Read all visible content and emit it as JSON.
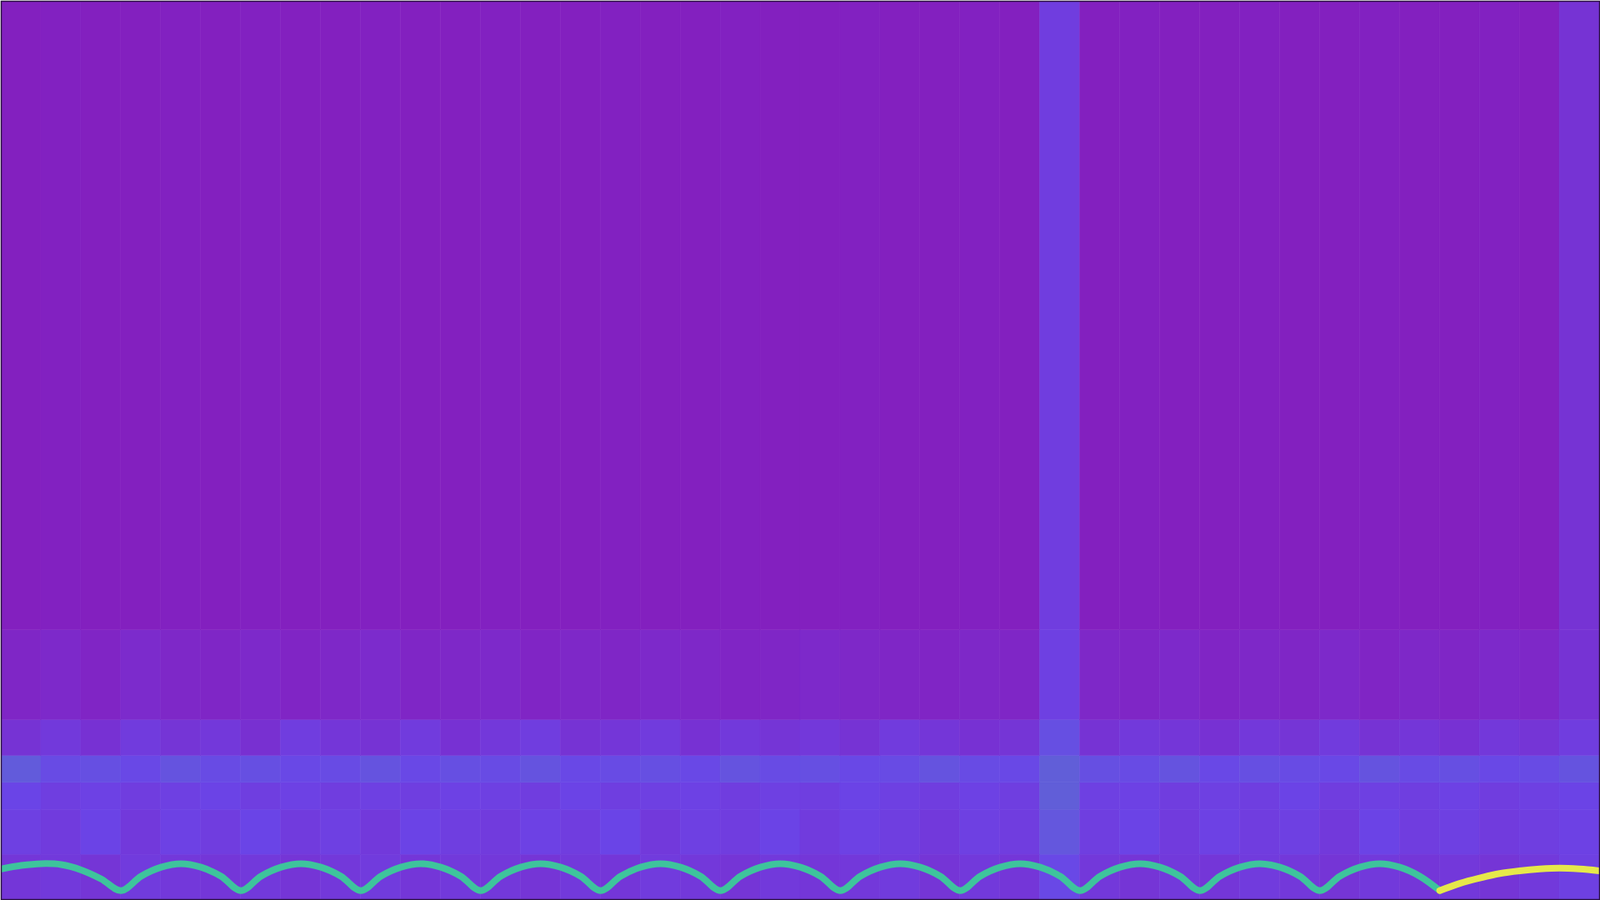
{
  "chart_data": {
    "type": "heatmap",
    "tick_labels": false,
    "xlim": [
      0,
      40
    ],
    "ylim": [
      0,
      100
    ],
    "zlim": [
      0,
      1
    ],
    "x_bins": [
      0,
      1,
      2,
      3,
      4,
      5,
      6,
      7,
      8,
      9,
      10,
      11,
      12,
      13,
      14,
      15,
      16,
      17,
      18,
      19,
      20,
      21,
      22,
      23,
      24,
      25,
      26,
      27,
      28,
      29,
      30,
      31,
      32,
      33,
      34,
      35,
      36,
      37,
      38,
      39,
      40
    ],
    "y_bins": [
      0,
      5,
      10,
      13,
      16,
      20,
      30,
      100
    ],
    "cells": [
      [
        0.24,
        0.26,
        0.23,
        0.27,
        0.25,
        0.24,
        0.26,
        0.23,
        0.25,
        0.27,
        0.24,
        0.26,
        0.25,
        0.23,
        0.26,
        0.24,
        0.27,
        0.25,
        0.23,
        0.26,
        0.24,
        0.25,
        0.27,
        0.23,
        0.26,
        0.24,
        0.34,
        0.25,
        0.23,
        0.26,
        0.24,
        0.27,
        0.25,
        0.23,
        0.26,
        0.24,
        0.25,
        0.23,
        0.26,
        0.3
      ],
      [
        0.3,
        0.27,
        0.32,
        0.26,
        0.31,
        0.28,
        0.33,
        0.27,
        0.3,
        0.26,
        0.32,
        0.29,
        0.27,
        0.31,
        0.28,
        0.33,
        0.26,
        0.3,
        0.28,
        0.32,
        0.27,
        0.31,
        0.29,
        0.26,
        0.3,
        0.28,
        0.38,
        0.29,
        0.32,
        0.27,
        0.31,
        0.28,
        0.3,
        0.26,
        0.32,
        0.28,
        0.3,
        0.27,
        0.29,
        0.31
      ],
      [
        0.33,
        0.29,
        0.31,
        0.28,
        0.3,
        0.32,
        0.29,
        0.31,
        0.28,
        0.3,
        0.29,
        0.31,
        0.3,
        0.28,
        0.32,
        0.29,
        0.3,
        0.31,
        0.28,
        0.3,
        0.29,
        0.32,
        0.3,
        0.28,
        0.31,
        0.29,
        0.4,
        0.3,
        0.31,
        0.28,
        0.3,
        0.29,
        0.32,
        0.28,
        0.3,
        0.29,
        0.31,
        0.28,
        0.3,
        0.32
      ],
      [
        0.39,
        0.35,
        0.36,
        0.34,
        0.37,
        0.35,
        0.36,
        0.34,
        0.35,
        0.37,
        0.34,
        0.36,
        0.35,
        0.37,
        0.34,
        0.35,
        0.36,
        0.34,
        0.37,
        0.35,
        0.36,
        0.34,
        0.35,
        0.37,
        0.35,
        0.34,
        0.4,
        0.36,
        0.35,
        0.37,
        0.34,
        0.36,
        0.35,
        0.34,
        0.37,
        0.35,
        0.36,
        0.34,
        0.35,
        0.37
      ],
      [
        0.22,
        0.26,
        0.21,
        0.27,
        0.23,
        0.25,
        0.2,
        0.28,
        0.24,
        0.22,
        0.27,
        0.21,
        0.25,
        0.28,
        0.22,
        0.24,
        0.27,
        0.21,
        0.26,
        0.23,
        0.25,
        0.22,
        0.27,
        0.24,
        0.21,
        0.23,
        0.36,
        0.22,
        0.26,
        0.24,
        0.21,
        0.25,
        0.23,
        0.27,
        0.22,
        0.24,
        0.21,
        0.25,
        0.23,
        0.28
      ],
      [
        0.14,
        0.16,
        0.13,
        0.17,
        0.15,
        0.14,
        0.16,
        0.13,
        0.15,
        0.17,
        0.14,
        0.15,
        0.16,
        0.13,
        0.15,
        0.14,
        0.16,
        0.15,
        0.13,
        0.14,
        0.16,
        0.15,
        0.14,
        0.13,
        0.15,
        0.14,
        0.3,
        0.15,
        0.14,
        0.16,
        0.13,
        0.15,
        0.14,
        0.16,
        0.13,
        0.15,
        0.14,
        0.16,
        0.15,
        0.22
      ],
      [
        0.1,
        0.11,
        0.1,
        0.1,
        0.11,
        0.1,
        0.11,
        0.1,
        0.1,
        0.11,
        0.1,
        0.1,
        0.11,
        0.1,
        0.1,
        0.11,
        0.1,
        0.1,
        0.11,
        0.1,
        0.1,
        0.11,
        0.1,
        0.1,
        0.11,
        0.1,
        0.28,
        0.1,
        0.11,
        0.1,
        0.1,
        0.11,
        0.1,
        0.1,
        0.11,
        0.1,
        0.1,
        0.11,
        0.1,
        0.22
      ]
    ],
    "x": [
      0,
      0.5,
      1,
      1.5,
      2,
      2.5,
      3,
      3.5,
      4,
      4.5,
      5,
      5.5,
      6,
      6.5,
      7,
      7.5,
      8,
      8.5,
      9,
      9.5,
      10,
      10.5,
      11,
      11.5,
      12,
      12.5,
      13,
      13.5,
      14,
      14.5,
      15,
      15.5,
      16,
      16.5,
      17,
      17.5,
      18,
      18.5,
      19,
      19.5,
      20,
      20.5,
      21,
      21.5,
      22,
      22.5,
      23,
      23.5,
      24,
      24.5,
      25,
      25.5,
      26,
      26.5,
      27,
      27.5,
      28,
      28.5,
      29,
      29.5,
      30,
      30.5,
      31,
      31.5,
      32,
      32.5,
      33,
      33.5,
      34,
      34.5,
      35,
      35.5,
      36,
      36.5,
      37,
      37.5,
      38,
      38.5,
      39,
      39.5,
      40
    ],
    "series": [
      {
        "type": "line",
        "color": "#3ec49c",
        "values": [
          3.4,
          3.8,
          4.0,
          3.9,
          3.3,
          2.3,
          1.0,
          2.6,
          3.6,
          4.0,
          3.6,
          2.6,
          1.0,
          2.6,
          3.6,
          4.0,
          3.6,
          2.6,
          1.0,
          2.6,
          3.6,
          4.0,
          3.6,
          2.6,
          1.0,
          2.6,
          3.6,
          4.0,
          3.6,
          2.6,
          1.0,
          2.6,
          3.6,
          4.0,
          3.6,
          2.6,
          1.0,
          2.6,
          3.6,
          4.0,
          3.6,
          2.6,
          1.0,
          2.6,
          3.6,
          4.0,
          3.6,
          2.6,
          1.0,
          2.6,
          3.6,
          4.0,
          3.6,
          2.6,
          1.0,
          2.6,
          3.6,
          4.0,
          3.6,
          2.6,
          1.0,
          2.6,
          3.6,
          4.0,
          3.6,
          2.6,
          1.0,
          2.6,
          3.6,
          4.0,
          3.6,
          2.6,
          1.0,
          null,
          null,
          null,
          null,
          null,
          null,
          null,
          null
        ]
      },
      {
        "type": "line",
        "color": "#e6e84a",
        "values": [
          null,
          null,
          null,
          null,
          null,
          null,
          null,
          null,
          null,
          null,
          null,
          null,
          null,
          null,
          null,
          null,
          null,
          null,
          null,
          null,
          null,
          null,
          null,
          null,
          null,
          null,
          null,
          null,
          null,
          null,
          null,
          null,
          null,
          null,
          null,
          null,
          null,
          null,
          null,
          null,
          null,
          null,
          null,
          null,
          null,
          null,
          null,
          null,
          null,
          null,
          null,
          null,
          null,
          null,
          null,
          null,
          null,
          null,
          null,
          null,
          null,
          null,
          null,
          null,
          null,
          null,
          null,
          null,
          null,
          null,
          null,
          null,
          1.0,
          1.8,
          2.4,
          2.9,
          3.2,
          3.4,
          3.5,
          3.4,
          3.2
        ]
      }
    ]
  }
}
